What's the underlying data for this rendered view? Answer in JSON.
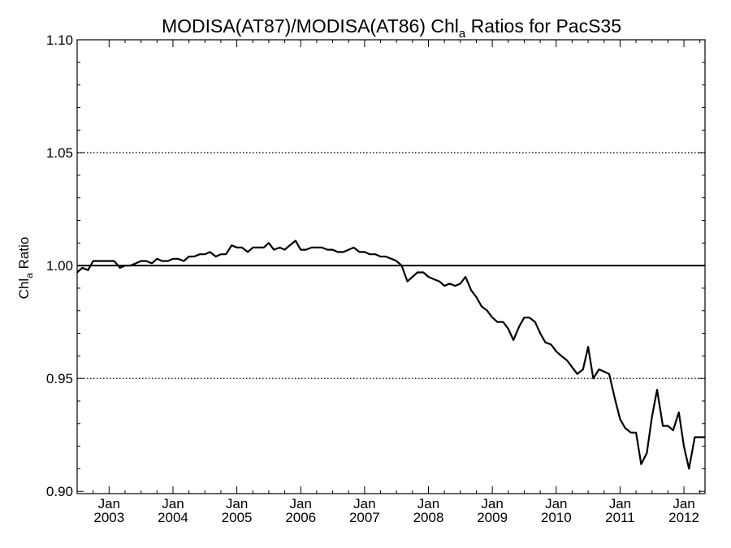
{
  "chart_data": {
    "type": "line",
    "title_main": "MODISA(AT87)/MODISA(AT86)  Chl",
    "title_sub": "a",
    "title_tail": " Ratios for PacS35",
    "ylabel_main": "Chl",
    "ylabel_sub": "a",
    "ylabel_tail": " Ratio",
    "xlabel": "",
    "xlim": [
      2002.5,
      2012.33
    ],
    "ylim": [
      0.899,
      1.1
    ],
    "y_ticks": [
      "0.90",
      "0.95",
      "1.00",
      "1.05",
      "1.10"
    ],
    "y_tick_values": [
      0.9,
      0.95,
      1.0,
      1.05,
      1.1
    ],
    "x_ticks": [
      {
        "month": "Jan",
        "year": "2003",
        "value": 2003.0
      },
      {
        "month": "Jan",
        "year": "2004",
        "value": 2004.0
      },
      {
        "month": "Jan",
        "year": "2005",
        "value": 2005.0
      },
      {
        "month": "Jan",
        "year": "2006",
        "value": 2006.0
      },
      {
        "month": "Jan",
        "year": "2007",
        "value": 2007.0
      },
      {
        "month": "Jan",
        "year": "2008",
        "value": 2008.0
      },
      {
        "month": "Jan",
        "year": "2009",
        "value": 2009.0
      },
      {
        "month": "Jan",
        "year": "2010",
        "value": 2010.0
      },
      {
        "month": "Jan",
        "year": "2011",
        "value": 2011.0
      },
      {
        "month": "Jan",
        "year": "2012",
        "value": 2012.0
      }
    ],
    "reference_lines": [
      {
        "y": 1.05,
        "style": "dotted"
      },
      {
        "y": 1.0,
        "style": "solid"
      },
      {
        "y": 0.95,
        "style": "dotted"
      }
    ],
    "series": [
      {
        "x": [
          2002.5,
          2002.58,
          2002.67,
          2002.75,
          2002.83,
          2002.92,
          2003.0,
          2003.08,
          2003.17,
          2003.25,
          2003.33,
          2003.42,
          2003.5,
          2003.58,
          2003.67,
          2003.75,
          2003.83,
          2003.92,
          2004.0,
          2004.08,
          2004.17,
          2004.25,
          2004.33,
          2004.42,
          2004.5,
          2004.58,
          2004.67,
          2004.75,
          2004.83,
          2004.92,
          2005.0,
          2005.08,
          2005.17,
          2005.25,
          2005.33,
          2005.42,
          2005.5,
          2005.58,
          2005.67,
          2005.75,
          2005.83,
          2005.92,
          2006.0,
          2006.08,
          2006.17,
          2006.25,
          2006.33,
          2006.42,
          2006.5,
          2006.58,
          2006.67,
          2006.75,
          2006.83,
          2006.92,
          2007.0,
          2007.08,
          2007.17,
          2007.25,
          2007.33,
          2007.42,
          2007.5,
          2007.58,
          2007.67,
          2007.75,
          2007.83,
          2007.92,
          2008.0,
          2008.08,
          2008.17,
          2008.25,
          2008.33,
          2008.42,
          2008.5,
          2008.58,
          2008.67,
          2008.75,
          2008.83,
          2008.92,
          2009.0,
          2009.08,
          2009.17,
          2009.25,
          2009.33,
          2009.42,
          2009.5,
          2009.58,
          2009.67,
          2009.75,
          2009.83,
          2009.92,
          2010.0,
          2010.08,
          2010.17,
          2010.25,
          2010.33,
          2010.42,
          2010.5,
          2010.58,
          2010.67,
          2010.75,
          2010.83,
          2010.92,
          2011.0,
          2011.08,
          2011.17,
          2011.25,
          2011.33,
          2011.42,
          2011.5,
          2011.58,
          2011.67,
          2011.75,
          2011.83,
          2011.92,
          2012.0,
          2012.08,
          2012.17,
          2012.25,
          2012.33
        ],
        "y": [
          0.997,
          0.999,
          0.998,
          1.002,
          1.002,
          1.002,
          1.002,
          1.002,
          0.999,
          1.0,
          1.0,
          1.001,
          1.002,
          1.002,
          1.001,
          1.003,
          1.002,
          1.002,
          1.003,
          1.003,
          1.002,
          1.004,
          1.004,
          1.005,
          1.005,
          1.006,
          1.004,
          1.005,
          1.005,
          1.009,
          1.008,
          1.008,
          1.006,
          1.008,
          1.008,
          1.008,
          1.01,
          1.007,
          1.008,
          1.007,
          1.009,
          1.011,
          1.007,
          1.007,
          1.008,
          1.008,
          1.008,
          1.007,
          1.007,
          1.006,
          1.006,
          1.007,
          1.008,
          1.006,
          1.006,
          1.005,
          1.005,
          1.004,
          1.004,
          1.003,
          1.002,
          1.0,
          0.993,
          0.995,
          0.997,
          0.997,
          0.995,
          0.994,
          0.993,
          0.991,
          0.992,
          0.991,
          0.992,
          0.995,
          0.989,
          0.986,
          0.982,
          0.98,
          0.977,
          0.975,
          0.975,
          0.972,
          0.967,
          0.973,
          0.977,
          0.977,
          0.975,
          0.97,
          0.966,
          0.965,
          0.962,
          0.96,
          0.958,
          0.955,
          0.952,
          0.954,
          0.964,
          0.95,
          0.954,
          0.953,
          0.952,
          0.941,
          0.932,
          0.928,
          0.926,
          0.926,
          0.912,
          0.917,
          0.933,
          0.945,
          0.929,
          0.929,
          0.927,
          0.935,
          0.92,
          0.91,
          0.924,
          0.924,
          0.924
        ]
      }
    ]
  }
}
